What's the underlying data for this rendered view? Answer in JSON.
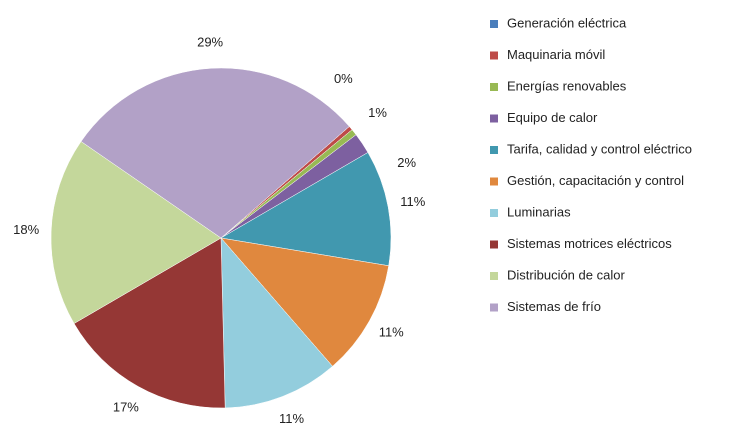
{
  "chart_data": {
    "type": "pie",
    "categories": [
      "Generación eléctrica",
      "Maquinaria móvil",
      "Energías renovables",
      "Equipo de calor",
      "Tarifa, calidad y control eléctrico",
      "Gestión, capacitación y control",
      "Luminarias",
      "Sistemas motrices eléctricos",
      "Distribución de calor",
      "Sistemas de frío"
    ],
    "values": [
      0,
      0.4,
      0.6,
      2,
      11,
      11,
      11,
      17,
      18,
      29
    ],
    "value_labels": [
      null,
      "0%",
      "1%",
      "2%",
      "11%",
      "11%",
      "11%",
      "17%",
      "18%",
      "29%"
    ],
    "colors": [
      "#4a7ebb",
      "#be4b48",
      "#98b954",
      "#7d60a0",
      "#4198af",
      "#e0883e",
      "#93cddd",
      "#953735",
      "#c4d79b",
      "#b2a1c7"
    ],
    "legend": "right"
  }
}
